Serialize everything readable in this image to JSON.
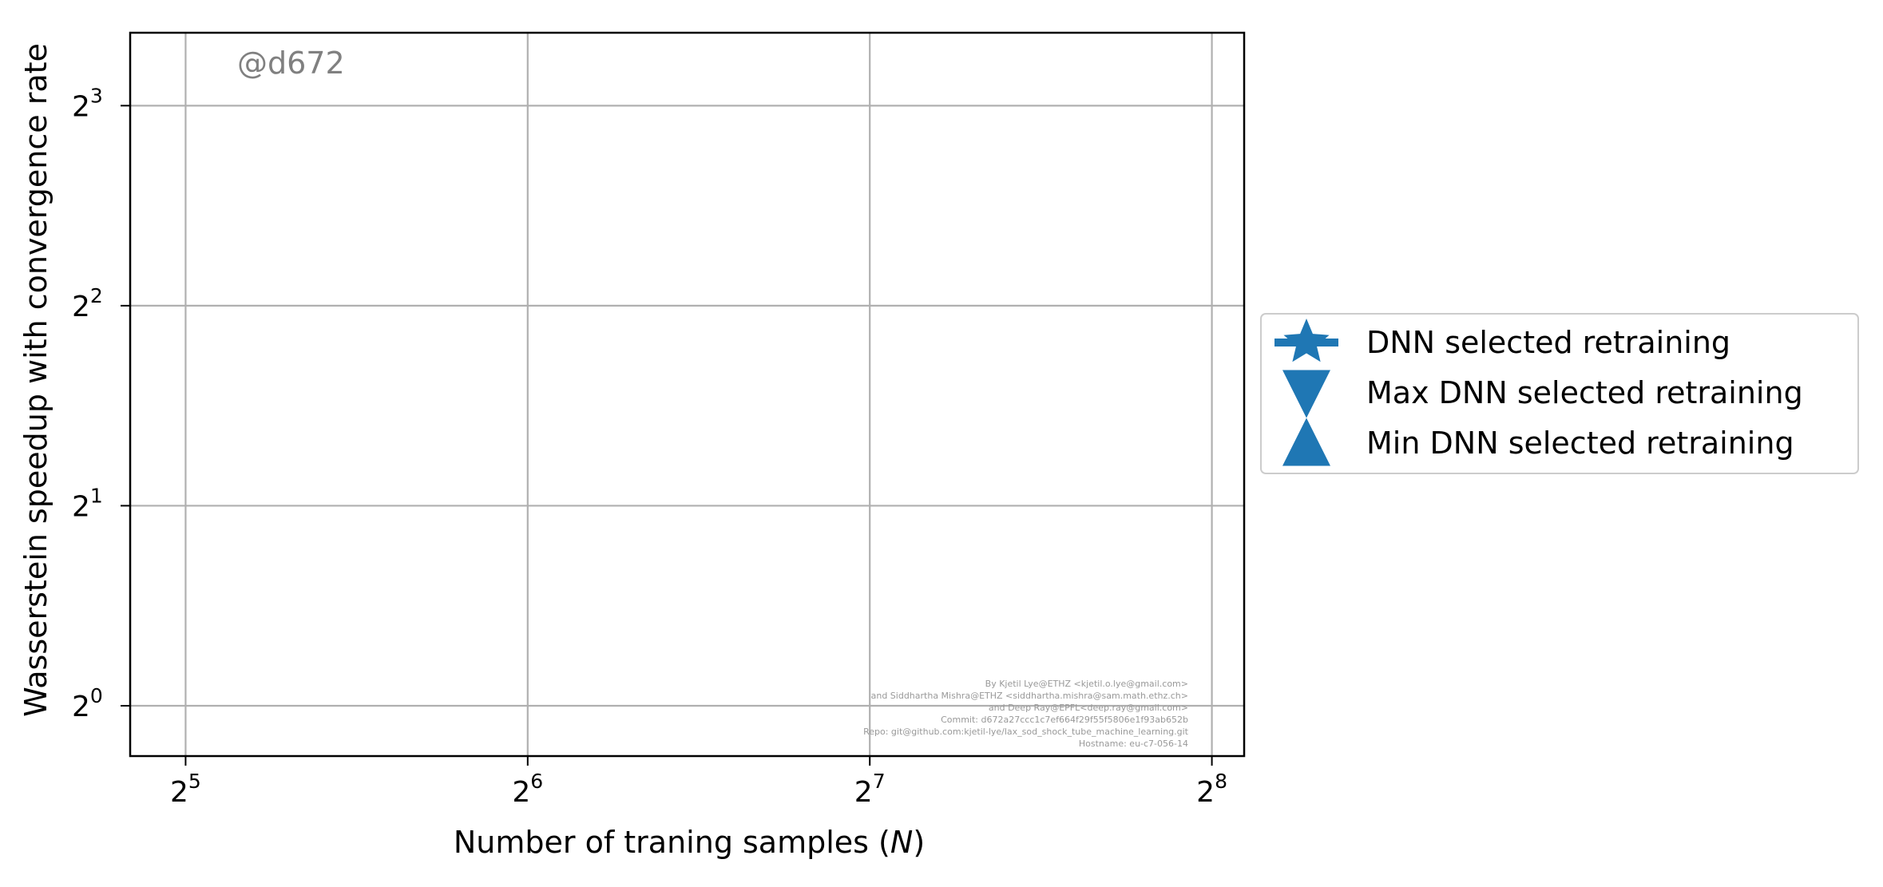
{
  "chart_data": {
    "type": "scatter",
    "title": "",
    "xlabel": "Number of traning samples (",
    "xlabel_var": "N",
    "xlabel_close": ")",
    "ylabel": "Wasserstein speedup with convergence rate",
    "xscale": "log2",
    "yscale": "log2",
    "xlim": [
      28.6,
      273.3
    ],
    "ylim": [
      0.84,
      10.3
    ],
    "x_ticks": [
      {
        "value": 32,
        "base": "2",
        "exp": "5"
      },
      {
        "value": 64,
        "base": "2",
        "exp": "6"
      },
      {
        "value": 128,
        "base": "2",
        "exp": "7"
      },
      {
        "value": 256,
        "base": "2",
        "exp": "8"
      }
    ],
    "y_ticks": [
      {
        "value": 1,
        "base": "2",
        "exp": "0"
      },
      {
        "value": 2,
        "base": "2",
        "exp": "1"
      },
      {
        "value": 4,
        "base": "2",
        "exp": "2"
      },
      {
        "value": 8,
        "base": "2",
        "exp": "3"
      }
    ],
    "grid": true,
    "legend_position": "outside right",
    "series": [
      {
        "name": "DNN selected retraining",
        "marker": "star",
        "color": "#1f77b4",
        "x": [],
        "y": []
      },
      {
        "name": "Max DNN selected retraining",
        "marker": "triangle-down",
        "color": "#1f77b4",
        "x": [],
        "y": []
      },
      {
        "name": "Min DNN selected retraining",
        "marker": "triangle-up",
        "color": "#1f77b4",
        "x": [],
        "y": []
      }
    ],
    "annotations": {
      "commit_tag": "@d672",
      "credits": [
        "By Kjetil Lye@ETHZ <kjetil.o.lye@gmail.com>",
        "and Siddhartha Mishra@ETHZ <siddhartha.mishra@sam.math.ethz.ch>",
        "and Deep Ray@EPFL<deep.ray@gmail.com>",
        "Commit: d672a27ccc1c7ef664f29f55f5806e1f93ab652b",
        "Repo: git@github.com:kjetil-lye/lax_sod_shock_tube_machine_learning.git",
        "Hostname: eu-c7-056-14"
      ]
    }
  }
}
